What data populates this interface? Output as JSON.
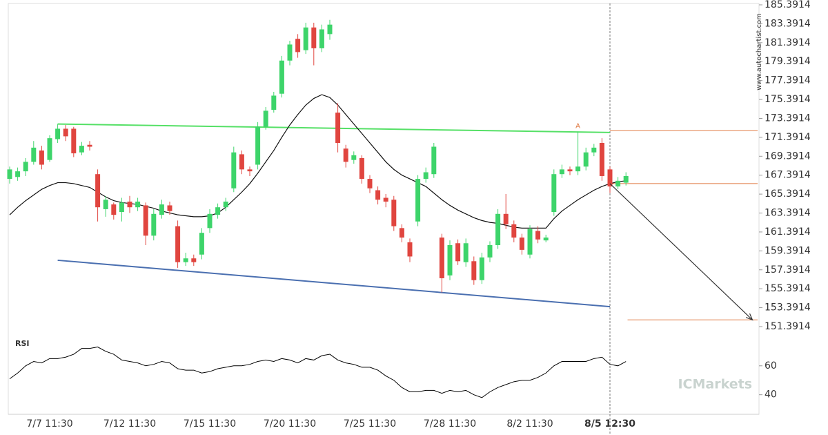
{
  "chart_data": [
    {
      "type": "candlestick",
      "categories": [
        null,
        null,
        null,
        null,
        null,
        "7/7 11:30",
        null,
        null,
        null,
        null,
        null,
        null,
        null,
        null,
        null,
        "7/12 11:30",
        null,
        null,
        null,
        null,
        null,
        null,
        null,
        null,
        null,
        "7/15 11:30",
        null,
        null,
        null,
        null,
        null,
        null,
        null,
        null,
        null,
        "7/20 11:30",
        null,
        null,
        null,
        null,
        null,
        null,
        null,
        null,
        null,
        "7/25 11:30",
        null,
        null,
        null,
        null,
        null,
        null,
        null,
        null,
        null,
        "7/28 11:30",
        null,
        null,
        null,
        null,
        null,
        null,
        null,
        null,
        null,
        "8/2 11:30",
        null,
        null,
        null,
        null,
        null,
        null,
        null,
        null,
        null,
        "8/5 12:30",
        null,
        null
      ],
      "open": [
        167,
        167.2,
        167.8,
        168.8,
        170,
        169,
        171.2,
        172.3,
        172.3,
        169.8,
        170.6,
        167.5,
        163.8,
        164.3,
        163.5,
        164.6,
        164,
        164.2,
        161,
        163.2,
        164.2,
        162,
        158.2,
        158.6,
        159,
        161.8,
        163.2,
        164,
        166,
        169.6,
        168,
        168.5,
        172.5,
        174.3,
        176,
        179.5,
        181.8,
        180.6,
        183,
        180.8,
        182.3,
        174,
        170.2,
        169,
        169.2,
        167,
        165.8,
        165,
        164.8,
        161.8,
        160.3,
        162.5,
        167,
        167.5,
        160.8,
        156.8,
        160.2,
        158.2,
        158.3,
        156.3,
        158.7,
        160,
        163.3,
        162.2,
        160.8,
        159,
        161.5,
        160.5,
        163.5,
        167.5,
        168,
        167.8,
        168.3,
        169.8,
        170.8,
        168,
        166.2,
        166.6
      ],
      "high": [
        168.3,
        168.2,
        169.2,
        171,
        170.5,
        171.6,
        172.8,
        172.7,
        172.5,
        170.9,
        171,
        168,
        165.2,
        164.5,
        165,
        165.2,
        165,
        164.5,
        163.8,
        164.8,
        164.6,
        162.6,
        159.2,
        159,
        161.8,
        163.8,
        164.4,
        165,
        170.4,
        170,
        168.3,
        173,
        174.6,
        176.2,
        180,
        181.6,
        182.3,
        183.5,
        183.5,
        183.3,
        183.8,
        175,
        170.6,
        169.9,
        169.5,
        167.4,
        166.2,
        165.4,
        165.2,
        162.2,
        160.7,
        167.4,
        168.2,
        170.8,
        161.2,
        160.5,
        160.6,
        160.7,
        158.8,
        159.2,
        160.4,
        163.8,
        165.4,
        162.6,
        161.2,
        162.1,
        162,
        161.1,
        168,
        168.5,
        168.3,
        172,
        170.3,
        170.7,
        171.3,
        168.3,
        167.2,
        167.7
      ],
      "low": [
        166.5,
        166.8,
        167.3,
        168.5,
        168,
        168.8,
        170.8,
        171,
        169.3,
        169.5,
        170,
        162.5,
        163,
        162.7,
        162.5,
        163.4,
        163.6,
        160,
        160.5,
        162.8,
        163.2,
        157.6,
        157.8,
        157.8,
        158.5,
        161.3,
        162.8,
        163.6,
        165.6,
        167.5,
        167.3,
        168,
        172.2,
        174,
        175.6,
        179,
        179.8,
        180.2,
        179,
        180.4,
        181.7,
        169.8,
        168.2,
        168.6,
        166.5,
        165.5,
        164.3,
        164,
        161.5,
        160.3,
        158.2,
        162,
        166.6,
        167.1,
        155,
        156.3,
        157.9,
        157.7,
        155.8,
        155.9,
        158.2,
        159.6,
        161.7,
        160.3,
        159,
        158.6,
        160.2,
        160.3,
        163.1,
        167.1,
        167.4,
        167.4,
        167.9,
        169.4,
        166.8,
        165.5,
        165.9,
        166.3
      ],
      "close": [
        168,
        167.8,
        168.8,
        170.3,
        168.5,
        171.3,
        172.3,
        171.5,
        169.7,
        170.5,
        170.4,
        164,
        164.8,
        163.2,
        164.5,
        164,
        164.6,
        161,
        163.3,
        164.3,
        163.6,
        158.2,
        158.6,
        158.2,
        161.3,
        163.3,
        164,
        164.6,
        169.8,
        168,
        167.8,
        172.5,
        174.2,
        175.8,
        179.5,
        181.2,
        180.4,
        183,
        180.8,
        182.8,
        183.3,
        170.8,
        168.8,
        169.5,
        167,
        166,
        164.8,
        164.6,
        162,
        160.8,
        158.8,
        167,
        167.7,
        170.4,
        156.5,
        160,
        158.3,
        160.2,
        156.3,
        158.7,
        160,
        163.3,
        162.2,
        160.8,
        159.5,
        161.7,
        160.6,
        160.8,
        167.5,
        168,
        167.8,
        168.3,
        169.8,
        170.3,
        167.3,
        166.2,
        166.8,
        167.3
      ],
      "moving_average": [
        163.2,
        164,
        164.7,
        165.3,
        165.9,
        166.3,
        166.6,
        166.6,
        166.5,
        166.3,
        166.1,
        165.6,
        165.1,
        164.7,
        164.5,
        164.4,
        164.3,
        164.1,
        163.9,
        163.6,
        163.4,
        163.2,
        163.1,
        163,
        163,
        163.1,
        163.4,
        164,
        164.8,
        165.6,
        166.5,
        167.6,
        168.8,
        170,
        171.4,
        172.7,
        173.8,
        174.8,
        175.5,
        175.9,
        175.6,
        174.8,
        173.8,
        172.8,
        171.8,
        170.8,
        169.8,
        168.8,
        168,
        167.4,
        167,
        166.6,
        166.2,
        165.5,
        164.8,
        164.2,
        163.7,
        163.3,
        162.9,
        162.6,
        162.4,
        162.3,
        162.1,
        161.9,
        161.8,
        161.8,
        161.8,
        161.8,
        162.8,
        163.6,
        164.2,
        164.8,
        165.3,
        165.8,
        166.2,
        166.5,
        166.7,
        166.8
      ],
      "up_color": "#3dd46a",
      "down_color": "#e0453f",
      "ylim": [
        151.3914,
        185.3914
      ],
      "yticks": [
        151.3914,
        153.3914,
        155.3914,
        157.3914,
        159.3914,
        161.3914,
        163.3914,
        165.3914,
        167.3914,
        169.3914,
        171.3914,
        173.3914,
        175.3914,
        177.3914,
        179.3914,
        181.3914,
        183.3914,
        185.3914
      ],
      "resistance": {
        "x": [
          6,
          75
        ],
        "y": [
          172.8,
          171.9
        ],
        "color": "#55e066"
      },
      "support": {
        "x": [
          6,
          75
        ],
        "y": [
          158.4,
          153.5
        ],
        "color": "#4a6fb0"
      },
      "levels": [
        {
          "from": 75,
          "value": 172.1
        },
        {
          "from": 75,
          "value": 166.5
        },
        {
          "from": 77.2,
          "value": 152.1
        }
      ],
      "level_color": "#e07b45",
      "projection": {
        "x": [
          75,
          92.8
        ],
        "y": [
          166.5,
          152.1
        ]
      },
      "marker_index": 75,
      "annotation": {
        "text": "A",
        "x": 71,
        "y": 172.6
      }
    },
    {
      "type": "line",
      "title": "RSI",
      "values": [
        51,
        55,
        60,
        63,
        62,
        65,
        65,
        66,
        68,
        72,
        72,
        73,
        70,
        68,
        64,
        63,
        62,
        60,
        61,
        63,
        62,
        58,
        57,
        57,
        55,
        56,
        58,
        59,
        60,
        60,
        61,
        63,
        64,
        63,
        65,
        64,
        62,
        65,
        64,
        67,
        68,
        64,
        62,
        61,
        59,
        59,
        57,
        53,
        50,
        45,
        42,
        42,
        43,
        43,
        41,
        43,
        42,
        43,
        40,
        38,
        42,
        45,
        47,
        49,
        50,
        50,
        52,
        55,
        60,
        63,
        63,
        63,
        63,
        65,
        66,
        61,
        60,
        63
      ],
      "color": "#000000",
      "ylim": [
        26,
        79
      ],
      "yticks": [
        40,
        60
      ]
    }
  ],
  "watermark": "www.autochartist.com",
  "logo": "ICMarkets"
}
